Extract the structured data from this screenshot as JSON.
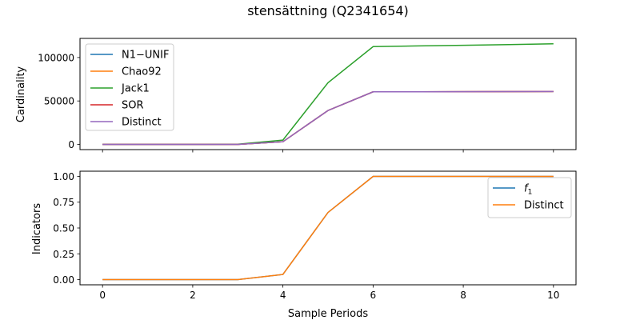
{
  "figure": {
    "title": "stensättning (Q2341654)",
    "xlabel": "Sample Periods"
  },
  "chart_data": [
    {
      "type": "line",
      "ylabel": "Cardinality",
      "x": [
        0,
        1,
        2,
        3,
        4,
        5,
        6,
        7,
        8,
        9,
        10
      ],
      "xlim": [
        -0.5,
        10.5
      ],
      "ylim": [
        -6000,
        122000
      ],
      "xticks": [
        0,
        2,
        4,
        6,
        8,
        10
      ],
      "yticks": [
        0,
        50000,
        100000
      ],
      "ytick_labels": [
        "0",
        "50000",
        "100000"
      ],
      "xtick_labels_shown": false,
      "legend_position": "upper left",
      "series": [
        {
          "name": "N1−UNIF",
          "color": "#1f77b4",
          "values": [
            0,
            0,
            0,
            0,
            3000,
            39000,
            60500,
            60600,
            60700,
            60800,
            60900
          ]
        },
        {
          "name": "Chao92",
          "color": "#ff7f0e",
          "values": [
            0,
            0,
            0,
            0,
            3000,
            39000,
            60500,
            60600,
            60700,
            60800,
            60900
          ]
        },
        {
          "name": "Jack1",
          "color": "#2ca02c",
          "values": [
            0,
            0,
            0,
            200,
            5000,
            71000,
            112500,
            113300,
            114100,
            114900,
            115700
          ]
        },
        {
          "name": "SOR",
          "color": "#d62728",
          "values": [
            0,
            0,
            0,
            0,
            3000,
            39000,
            60500,
            60600,
            60700,
            60800,
            60900
          ]
        },
        {
          "name": "Distinct",
          "color": "#9467bd",
          "values": [
            0,
            0,
            0,
            0,
            3000,
            39000,
            60500,
            60600,
            60700,
            60800,
            60900
          ]
        }
      ]
    },
    {
      "type": "line",
      "ylabel": "Indicators",
      "x": [
        0,
        1,
        2,
        3,
        4,
        5,
        6,
        7,
        8,
        9,
        10
      ],
      "xlim": [
        -0.5,
        10.5
      ],
      "ylim": [
        -0.05,
        1.05
      ],
      "xticks": [
        0,
        2,
        4,
        6,
        8,
        10
      ],
      "xtick_labels": [
        "0",
        "2",
        "4",
        "6",
        "8",
        "10"
      ],
      "yticks": [
        0,
        0.25,
        0.5,
        0.75,
        1.0
      ],
      "ytick_labels": [
        "0.00",
        "0.25",
        "0.50",
        "0.75",
        "1.00"
      ],
      "legend_position": "upper right",
      "series": [
        {
          "name": "f1",
          "name_main": "f",
          "name_sub": "1",
          "color": "#1f77b4",
          "values": [
            0,
            0,
            0,
            0,
            0.05,
            0.65,
            1.0,
            1.0,
            1.0,
            1.0,
            1.0
          ]
        },
        {
          "name": "Distinct",
          "color": "#ff7f0e",
          "values": [
            0,
            0,
            0,
            0,
            0.05,
            0.65,
            1.0,
            1.0,
            1.0,
            1.0,
            1.0
          ]
        }
      ]
    }
  ]
}
